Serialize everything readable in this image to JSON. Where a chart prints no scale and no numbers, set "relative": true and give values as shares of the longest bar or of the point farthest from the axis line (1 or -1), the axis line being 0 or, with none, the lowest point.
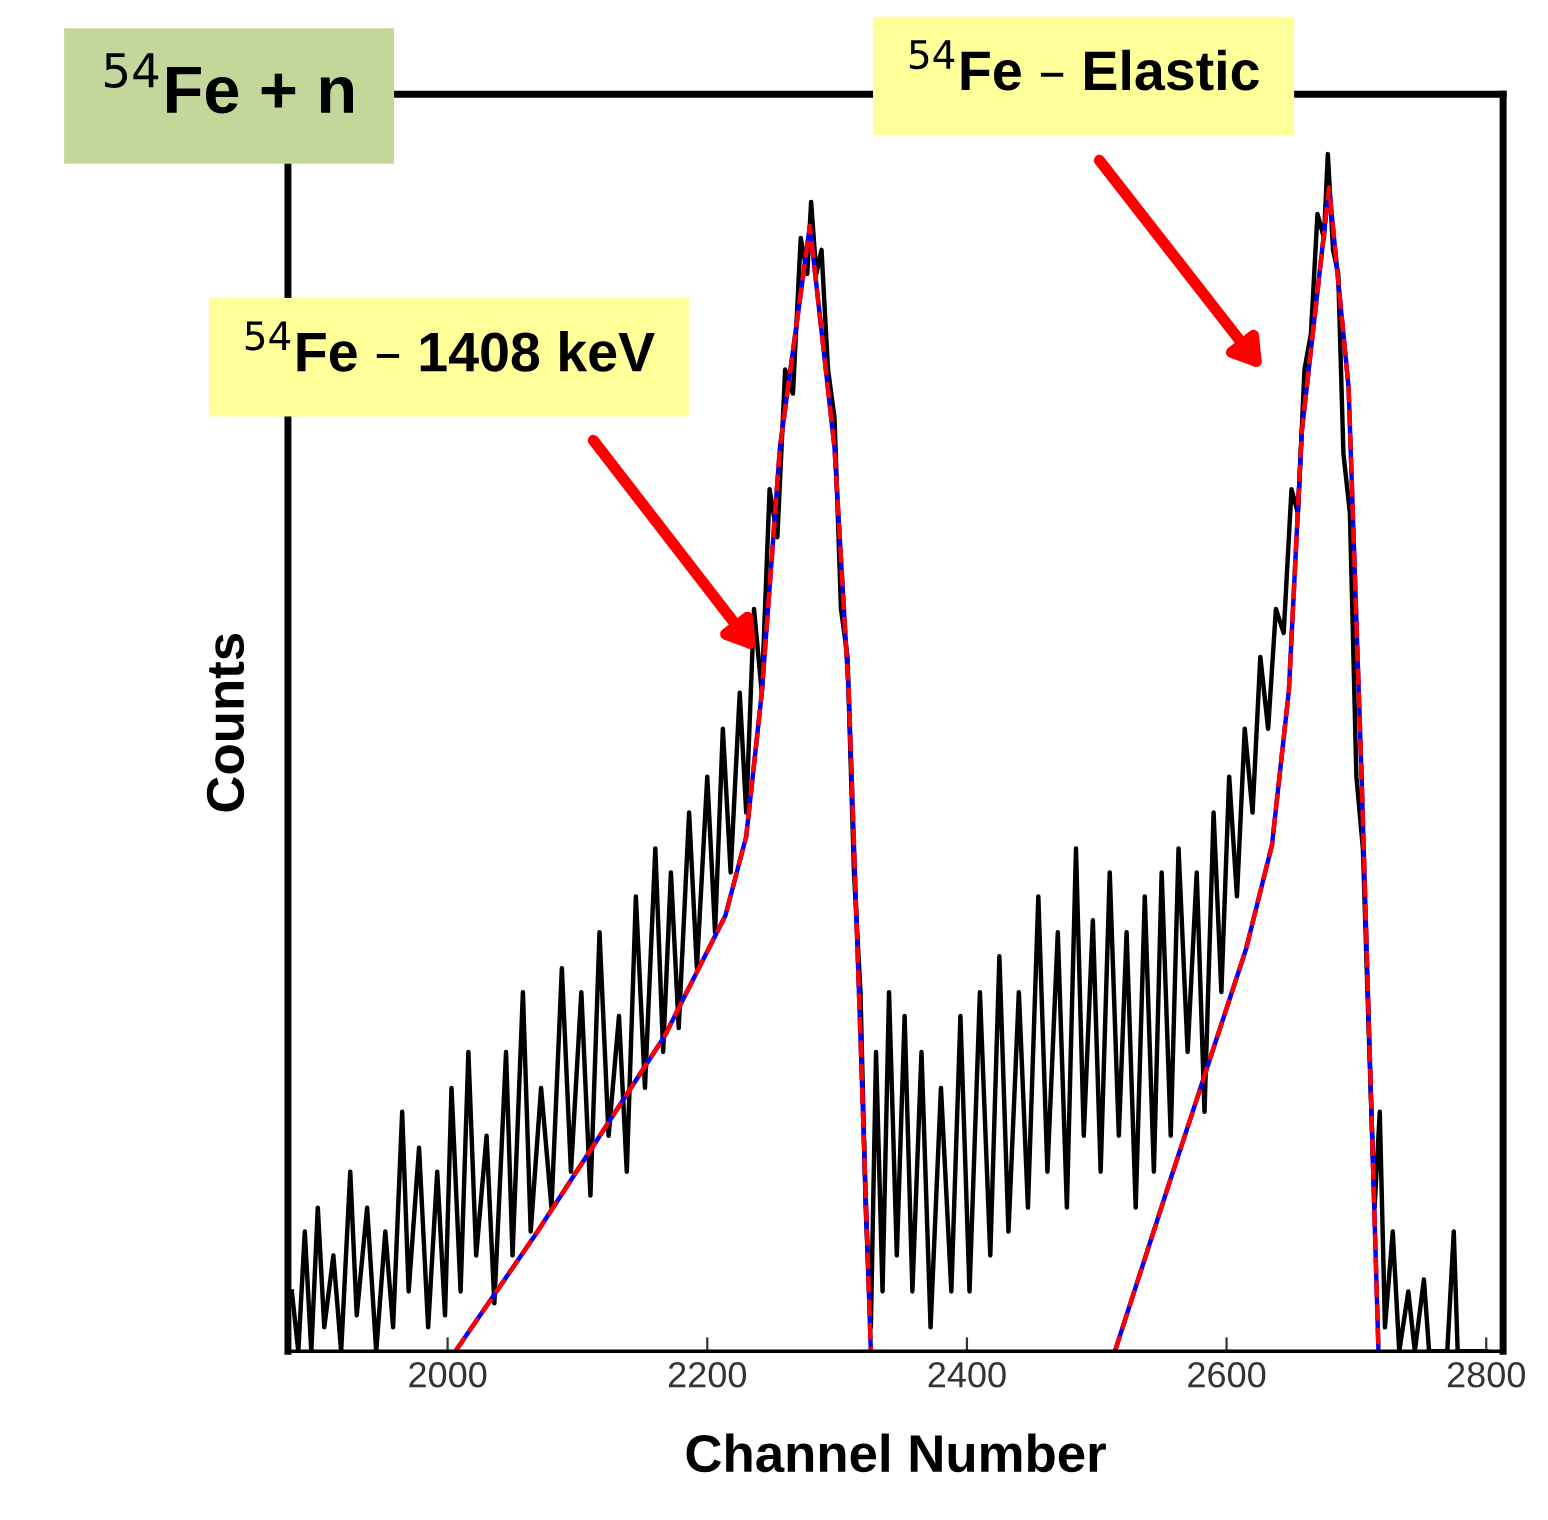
{
  "chart_data": {
    "type": "line",
    "title": "$^{54}$Fe + n",
    "xlabel": "Channel Number",
    "ylabel": "Counts",
    "relative": true,
    "xlim": [
      1877,
      2813
    ],
    "xticks": [
      2000,
      2200,
      2400,
      2600,
      2800
    ],
    "grid": false,
    "annotations": [
      "$^{54}$Fe – 1408 keV",
      "$^{54}$Fe – Elastic"
    ],
    "series": [
      {
        "color": "#000000",
        "line_style": "solid",
        "x": [
          1880,
          1885,
          1890,
          1895,
          1900,
          1905,
          1912,
          1918,
          1925,
          1930,
          1938,
          1945,
          1952,
          1958,
          1965,
          1970,
          1978,
          1985,
          1992,
          1998,
          2003,
          2010,
          2016,
          2022,
          2030,
          2036,
          2045,
          2050,
          2058,
          2064,
          2072,
          2080,
          2088,
          2095,
          2103,
          2110,
          2117,
          2124,
          2132,
          2138,
          2145,
          2152,
          2160,
          2166,
          2172,
          2178,
          2186,
          2192,
          2200,
          2206,
          2212,
          2218,
          2225,
          2230,
          2236,
          2242,
          2248,
          2254,
          2260,
          2266,
          2272,
          2277,
          2280,
          2284,
          2288,
          2293,
          2298,
          2303,
          2308,
          2313,
          2318,
          2322,
          2326,
          2330,
          2335,
          2340,
          2346,
          2352,
          2358,
          2365,
          2372,
          2380,
          2388,
          2395,
          2402,
          2410,
          2418,
          2425,
          2432,
          2440,
          2447,
          2455,
          2462,
          2470,
          2477,
          2484,
          2490,
          2497,
          2503,
          2510,
          2517,
          2523,
          2530,
          2537,
          2544,
          2550,
          2557,
          2563,
          2570,
          2577,
          2583,
          2590,
          2596,
          2602,
          2608,
          2614,
          2620,
          2626,
          2632,
          2638,
          2644,
          2650,
          2655,
          2660,
          2665,
          2670,
          2675,
          2678,
          2682,
          2686,
          2690,
          2695,
          2700,
          2705,
          2710,
          2714,
          2718,
          2722,
          2728,
          2733,
          2740,
          2745,
          2752,
          2756,
          2770,
          2775,
          2778,
          2800
        ],
        "values": [
          0.05,
          0.0,
          0.1,
          0.0,
          0.12,
          0.02,
          0.08,
          0.0,
          0.15,
          0.03,
          0.12,
          0.0,
          0.1,
          0.02,
          0.2,
          0.05,
          0.17,
          0.02,
          0.15,
          0.03,
          0.22,
          0.05,
          0.25,
          0.08,
          0.18,
          0.04,
          0.25,
          0.08,
          0.3,
          0.1,
          0.22,
          0.12,
          0.32,
          0.15,
          0.3,
          0.13,
          0.35,
          0.18,
          0.28,
          0.15,
          0.38,
          0.22,
          0.42,
          0.25,
          0.4,
          0.27,
          0.45,
          0.32,
          0.48,
          0.35,
          0.52,
          0.4,
          0.55,
          0.45,
          0.62,
          0.55,
          0.72,
          0.68,
          0.82,
          0.8,
          0.93,
          0.9,
          0.96,
          0.9,
          0.92,
          0.82,
          0.78,
          0.62,
          0.58,
          0.4,
          0.3,
          0.12,
          0.02,
          0.25,
          0.05,
          0.3,
          0.08,
          0.28,
          0.05,
          0.25,
          0.02,
          0.22,
          0.05,
          0.28,
          0.05,
          0.3,
          0.08,
          0.33,
          0.1,
          0.3,
          0.12,
          0.38,
          0.15,
          0.35,
          0.12,
          0.42,
          0.18,
          0.36,
          0.15,
          0.4,
          0.18,
          0.35,
          0.12,
          0.38,
          0.15,
          0.4,
          0.18,
          0.42,
          0.25,
          0.4,
          0.2,
          0.45,
          0.3,
          0.48,
          0.38,
          0.52,
          0.45,
          0.58,
          0.52,
          0.62,
          0.6,
          0.72,
          0.7,
          0.82,
          0.85,
          0.95,
          0.93,
          1.0,
          0.92,
          0.9,
          0.75,
          0.7,
          0.48,
          0.42,
          0.25,
          0.12,
          0.2,
          0.02,
          0.1,
          0.0,
          0.05,
          0.0,
          0.06,
          0.0,
          0.0,
          0.1,
          0.0,
          0.0
        ]
      },
      {
        "color": "#0000ff",
        "line_style": "solid",
        "x": [
          2006,
          2068,
          2167,
          2214,
          2230,
          2242,
          2256,
          2279,
          2298,
          2309,
          2318,
          2326
        ],
        "values": [
          0.0,
          0.098,
          0.263,
          0.364,
          0.43,
          0.55,
          0.755,
          0.94,
          0.755,
          0.55,
          0.263,
          0.0
        ]
      },
      {
        "color": "#0000ff",
        "line_style": "solid",
        "x": [
          2514,
          2556,
          2615,
          2635,
          2648,
          2658,
          2679,
          2694,
          2704,
          2717
        ],
        "values": [
          0.0,
          0.141,
          0.336,
          0.423,
          0.552,
          0.769,
          0.972,
          0.805,
          0.48,
          0.0
        ]
      },
      {
        "color": "#ff0000",
        "line_style": "dashed",
        "x": [
          2006,
          2068,
          2167,
          2214,
          2230,
          2242,
          2256,
          2279,
          2298,
          2309,
          2318,
          2326
        ],
        "values": [
          0.0,
          0.098,
          0.263,
          0.364,
          0.43,
          0.55,
          0.755,
          0.94,
          0.755,
          0.55,
          0.263,
          0.0
        ]
      },
      {
        "color": "#ff0000",
        "line_style": "dashed",
        "x": [
          2514,
          2556,
          2615,
          2635,
          2648,
          2658,
          2679,
          2694,
          2704,
          2717
        ],
        "values": [
          0.0,
          0.141,
          0.336,
          0.423,
          0.552,
          0.769,
          0.972,
          0.805,
          0.48,
          0.0
        ]
      }
    ]
  }
}
